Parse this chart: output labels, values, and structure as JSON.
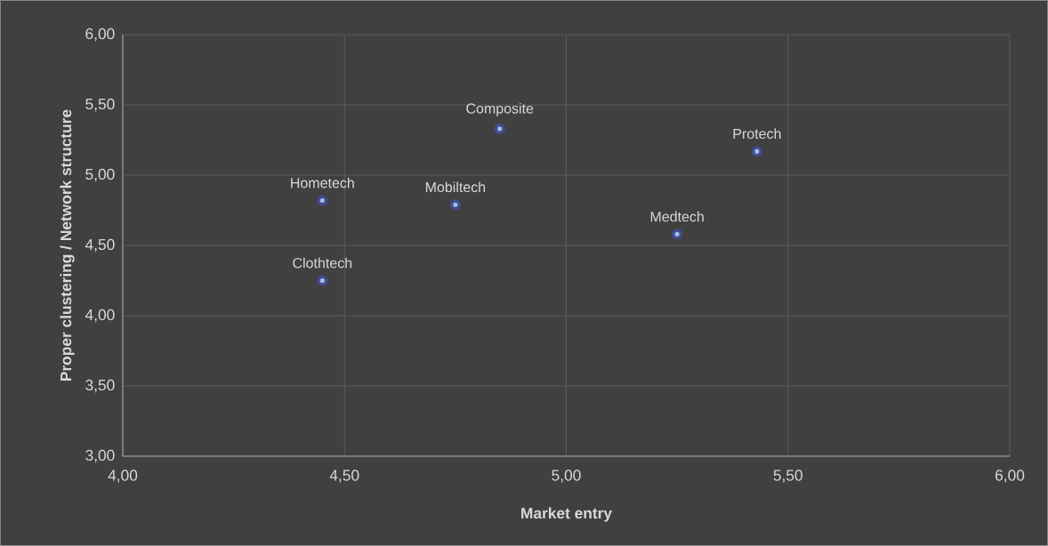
{
  "chart_data": {
    "type": "scatter",
    "xlabel": "Market entry",
    "ylabel": "Proper clustering / Network structure",
    "series": [
      {
        "color": "#9dc3e6",
        "x": [
          4.45,
          4.45,
          4.75,
          4.85,
          5.25,
          5.43
        ],
        "values": [
          4.82,
          4.25,
          4.79,
          5.33,
          4.58,
          5.17
        ]
      }
    ],
    "annotations": [
      {
        "text": "Hometech",
        "x": 4.45,
        "y": 4.82
      },
      {
        "text": "Clothtech",
        "x": 4.45,
        "y": 4.25
      },
      {
        "text": "Mobiltech",
        "x": 4.75,
        "y": 4.79
      },
      {
        "text": "Composite",
        "x": 4.85,
        "y": 5.33
      },
      {
        "text": "Medtech",
        "x": 5.25,
        "y": 4.58
      },
      {
        "text": "Protech",
        "x": 5.43,
        "y": 5.17
      }
    ],
    "xlim": [
      4,
      6
    ],
    "ylim": [
      3,
      6
    ],
    "xticks": [
      {
        "value": 4,
        "label": "4,00"
      },
      {
        "value": 4.5,
        "label": "4,50"
      },
      {
        "value": 5,
        "label": "5,00"
      },
      {
        "value": 5.5,
        "label": "5,50"
      },
      {
        "value": 6,
        "label": "6,00"
      }
    ],
    "yticks": [
      {
        "value": 3,
        "label": "3,00"
      },
      {
        "value": 3.5,
        "label": "3,50"
      },
      {
        "value": 4,
        "label": "4,00"
      },
      {
        "value": 4.5,
        "label": "4,50"
      },
      {
        "value": 5,
        "label": "5,00"
      },
      {
        "value": 5.5,
        "label": "5,50"
      },
      {
        "value": 6,
        "label": "6,00"
      }
    ],
    "grid": true
  }
}
